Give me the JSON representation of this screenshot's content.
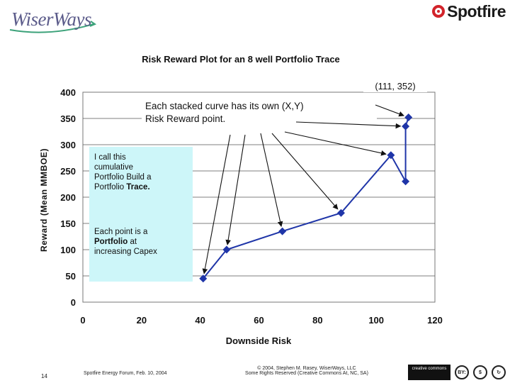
{
  "logos": {
    "left": "WiserWays",
    "right": "Spotfire"
  },
  "chart_data": {
    "type": "scatter",
    "title": "Risk Reward Plot for an 8 well Portfolio Trace",
    "xlabel": "Downside Risk",
    "ylabel": "Reward (Mean MMBOE)",
    "xlim": [
      0,
      120
    ],
    "ylim": [
      0,
      400
    ],
    "x_ticks": [
      "0",
      "20",
      "40",
      "60",
      "80",
      "100",
      "120"
    ],
    "y_ticks": [
      "0",
      "50",
      "100",
      "150",
      "200",
      "250",
      "300",
      "350",
      "400"
    ],
    "grid": "horizontal",
    "series": [
      {
        "color": "#1f35a8",
        "x": [
          41,
          49,
          68,
          88,
          105,
          110,
          110,
          111
        ],
        "y": [
          45,
          100,
          135,
          170,
          280,
          230,
          335,
          352
        ]
      }
    ],
    "annotations": {
      "point_label": "(111, 352)",
      "headline": "Each stacked curve has its own (X,Y) Risk Reward point.",
      "box_text_1": "I call this cumulative Portfolio Build a Portfolio Trace.",
      "box_text_2": "Each point is a Portfolio at increasing Capex"
    }
  },
  "footer": {
    "page": "14",
    "event": "Spotfire Energy Forum, Feb. 10, 2004",
    "copyright_1": "© 2004, Stephen M. Rasey, WiserWays, LLC",
    "copyright_2": "Some Rights Reserved (Creative Commons At, NC, SA)",
    "cc_label": "creative commons",
    "cc_by": "BY:"
  }
}
